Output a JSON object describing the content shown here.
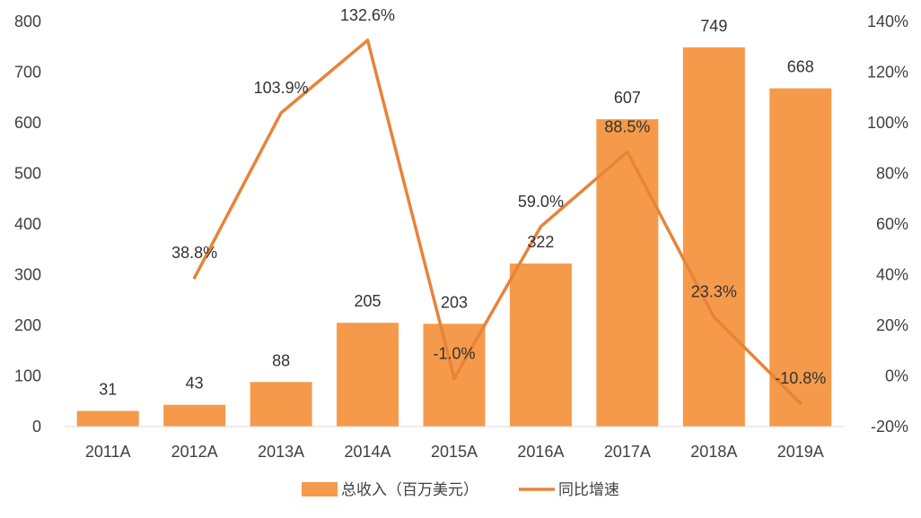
{
  "chart_data": {
    "type": "bar",
    "categories": [
      "2011A",
      "2012A",
      "2013A",
      "2014A",
      "2015A",
      "2016A",
      "2017A",
      "2018A",
      "2019A"
    ],
    "series": [
      {
        "name": "总收入（百万美元）",
        "type": "bar",
        "axis": "left",
        "values": [
          31,
          43,
          88,
          205,
          203,
          322,
          607,
          749,
          668
        ],
        "labels": [
          "31",
          "43",
          "88",
          "205",
          "203",
          "322",
          "607",
          "749",
          "668"
        ]
      },
      {
        "name": "同比增速",
        "type": "line",
        "axis": "right",
        "values": [
          null,
          38.8,
          103.9,
          132.6,
          -1.0,
          59.0,
          88.5,
          23.3,
          -10.8
        ],
        "labels": [
          "",
          "38.8%",
          "103.9%",
          "132.6%",
          "-1.0%",
          "59.0%",
          "88.5%",
          "23.3%",
          "-10.8%"
        ]
      }
    ],
    "y_left": {
      "lim": [
        0,
        800
      ],
      "ticks": [
        0,
        100,
        200,
        300,
        400,
        500,
        600,
        700,
        800
      ],
      "tick_labels": [
        "0",
        "100",
        "200",
        "300",
        "400",
        "500",
        "600",
        "700",
        "800"
      ]
    },
    "y_right": {
      "lim": [
        -20,
        140
      ],
      "ticks": [
        -20,
        0,
        20,
        40,
        60,
        80,
        100,
        120,
        140
      ],
      "tick_labels": [
        "-20%",
        "0%",
        "20%",
        "40%",
        "60%",
        "80%",
        "100%",
        "120%",
        "140%"
      ]
    },
    "colors": {
      "bar": "#F59A4A",
      "line": "#E8833A"
    },
    "grid": false,
    "legend_position": "bottom-center"
  }
}
